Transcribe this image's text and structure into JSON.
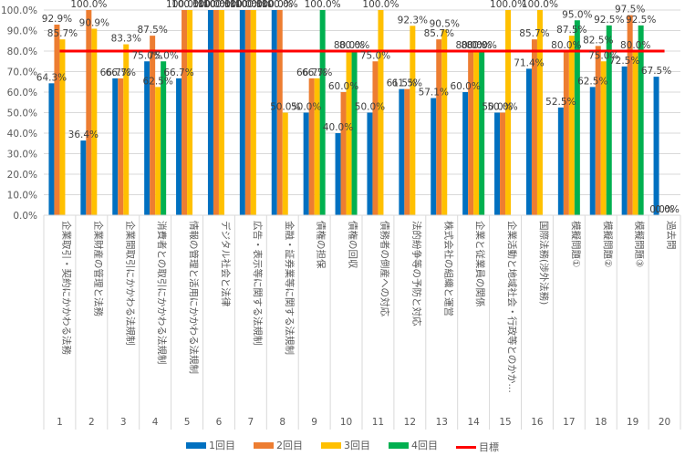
{
  "chart_data": {
    "type": "bar",
    "title": "",
    "xlabel": "",
    "ylabel": "",
    "ylim": [
      0,
      1.0
    ],
    "yticks": [
      "0.0%",
      "10.0%",
      "20.0%",
      "30.0%",
      "40.0%",
      "50.0%",
      "60.0%",
      "70.0%",
      "80.0%",
      "90.0%",
      "100.0%"
    ],
    "grid": true,
    "legend_position": "bottom",
    "categories": [
      "1",
      "2",
      "3",
      "4",
      "5",
      "6",
      "7",
      "8",
      "9",
      "10",
      "11",
      "12",
      "13",
      "14",
      "15",
      "16",
      "17",
      "18",
      "19",
      "20"
    ],
    "category_names": [
      "企業取引・契約にかかわる法務",
      "企業財産の管理と法務",
      "企業間取引にかかわる法規制",
      "消費者との取引にかかわる法規制",
      "情報の管理と活用にかかわる法規制",
      "デジタル社会と法律",
      "広告・表示等に関する法規制",
      "金融・証券業等に関する法規制",
      "債権の担保",
      "債権の回収",
      "債務者の倒産への対応",
      "法的紛争等の予防と対応",
      "株式会社の組織と運営",
      "企業と従業員の関係",
      "企業活動と地域社会・行政等とのかか…",
      "国際法務(渉外法務)",
      "模擬問題①",
      "模擬問題②",
      "模擬問題③",
      "過去問"
    ],
    "series": [
      {
        "name": "1回目",
        "color": "#0070C0",
        "values": [
          0.643,
          0.364,
          0.667,
          0.75,
          0.667,
          1.0,
          1.0,
          1.0,
          0.5,
          0.4,
          0.5,
          0.615,
          0.571,
          0.6,
          0.5,
          0.714,
          0.525,
          0.625,
          0.725,
          0.675
        ]
      },
      {
        "name": "2回目",
        "color": "#ED7D31",
        "values": [
          0.929,
          1.0,
          0.667,
          0.875,
          1.0,
          1.0,
          1.0,
          1.0,
          0.667,
          0.6,
          0.75,
          0.615,
          0.857,
          0.8,
          0.5,
          0.857,
          0.8,
          0.825,
          0.975,
          0.0
        ]
      },
      {
        "name": "3回目",
        "color": "#FFC000",
        "values": [
          0.857,
          0.909,
          0.833,
          0.625,
          1.0,
          1.0,
          1.0,
          0.5,
          0.667,
          0.8,
          1.0,
          0.923,
          0.905,
          0.8,
          1.0,
          1.0,
          0.875,
          0.75,
          0.8,
          0.0
        ]
      },
      {
        "name": "4回目",
        "color": "#00B050",
        "values": [
          null,
          null,
          null,
          0.75,
          null,
          null,
          null,
          null,
          1.0,
          0.8,
          null,
          null,
          null,
          0.8,
          null,
          null,
          0.95,
          0.925,
          0.925,
          null
        ]
      }
    ],
    "target": {
      "name": "目標",
      "color": "#FF0000",
      "value": 0.8
    }
  }
}
